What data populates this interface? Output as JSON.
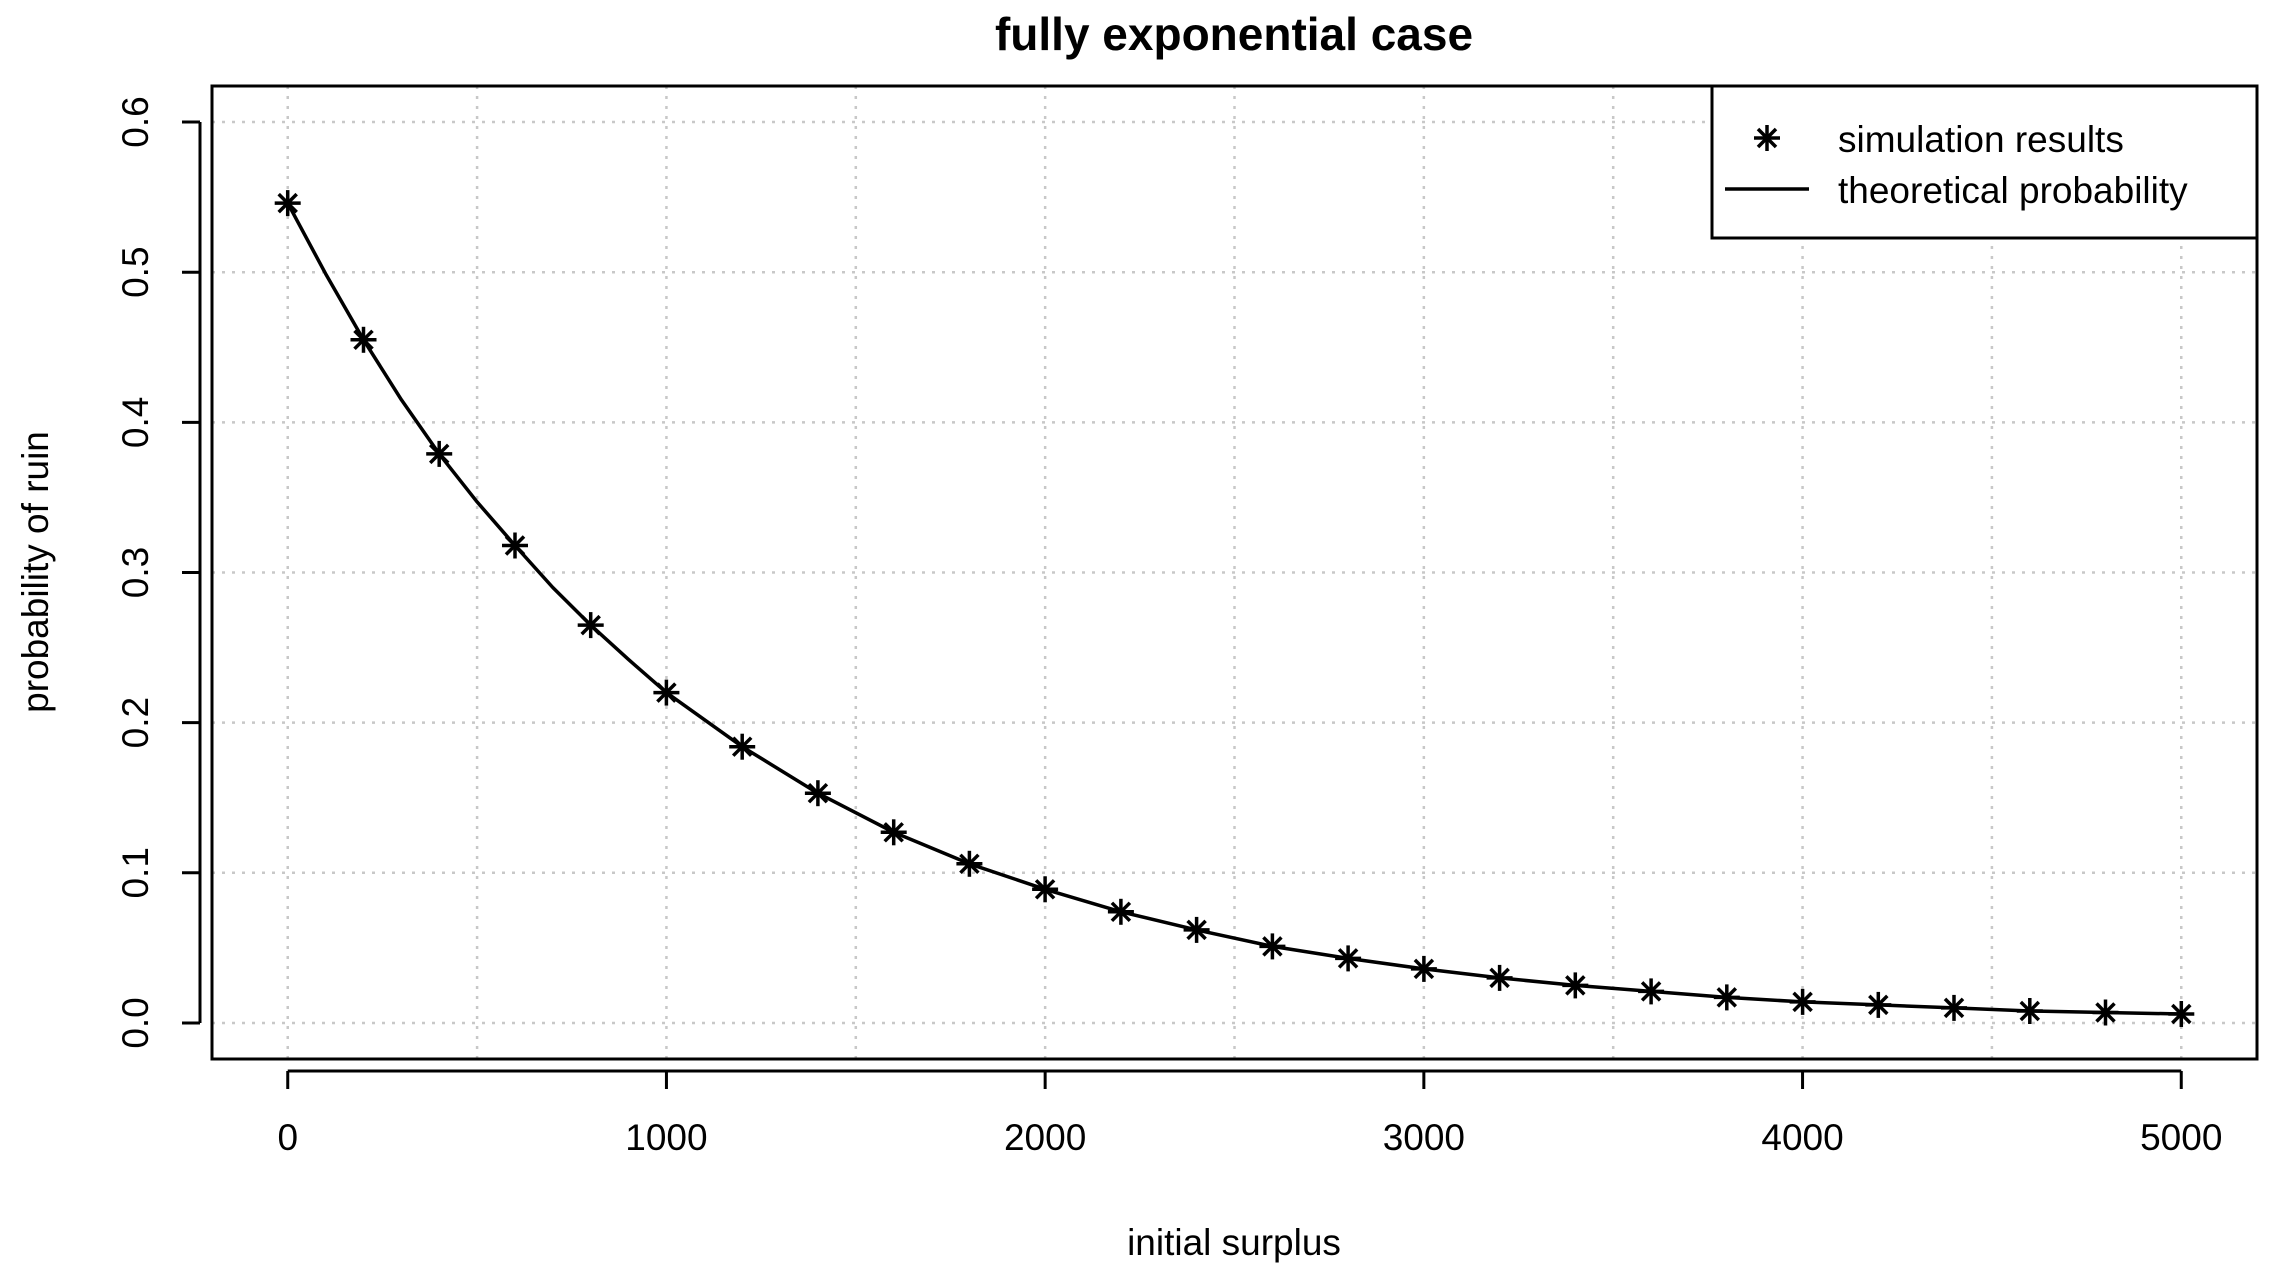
{
  "chart_data": {
    "type": "line",
    "title": "fully exponential case",
    "xlabel": "initial surplus",
    "ylabel": "probability of ruin",
    "xlim": [
      -200,
      5200
    ],
    "ylim": [
      -0.024,
      0.624
    ],
    "x_ticks": [
      0,
      1000,
      2000,
      3000,
      4000,
      5000
    ],
    "x_tick_labels": [
      "0",
      "1000",
      "2000",
      "3000",
      "4000",
      "5000"
    ],
    "y_ticks": [
      0.0,
      0.1,
      0.2,
      0.3,
      0.4,
      0.5,
      0.6
    ],
    "y_tick_labels": [
      "0.0",
      "0.1",
      "0.2",
      "0.3",
      "0.4",
      "0.5",
      "0.6"
    ],
    "grid": true,
    "legend_position": "top-right",
    "series": [
      {
        "name": "simulation results",
        "kind": "points",
        "marker": "asterisk",
        "x": [
          0,
          200,
          400,
          600,
          800,
          1000,
          1200,
          1400,
          1600,
          1800,
          2000,
          2200,
          2400,
          2600,
          2800,
          3000,
          3200,
          3400,
          3600,
          3800,
          4000,
          4200,
          4400,
          4600,
          4800,
          5000
        ],
        "y": [
          0.546,
          0.455,
          0.379,
          0.318,
          0.265,
          0.22,
          0.184,
          0.153,
          0.127,
          0.106,
          0.089,
          0.074,
          0.062,
          0.051,
          0.043,
          0.036,
          0.03,
          0.025,
          0.021,
          0.017,
          0.014,
          0.012,
          0.01,
          0.008,
          0.007,
          0.006
        ]
      },
      {
        "name": "theoretical probability",
        "kind": "line",
        "x": [
          0,
          100,
          200,
          300,
          400,
          500,
          600,
          700,
          800,
          900,
          1000,
          1200,
          1400,
          1600,
          1800,
          2000,
          2200,
          2400,
          2600,
          2800,
          3000,
          3200,
          3400,
          3600,
          3800,
          4000,
          4200,
          4400,
          4600,
          4800,
          5000
        ],
        "y": [
          0.546,
          0.499,
          0.455,
          0.415,
          0.379,
          0.347,
          0.318,
          0.29,
          0.265,
          0.242,
          0.22,
          0.184,
          0.153,
          0.127,
          0.106,
          0.089,
          0.074,
          0.062,
          0.051,
          0.043,
          0.036,
          0.03,
          0.025,
          0.021,
          0.017,
          0.014,
          0.012,
          0.01,
          0.008,
          0.007,
          0.006
        ]
      }
    ]
  }
}
